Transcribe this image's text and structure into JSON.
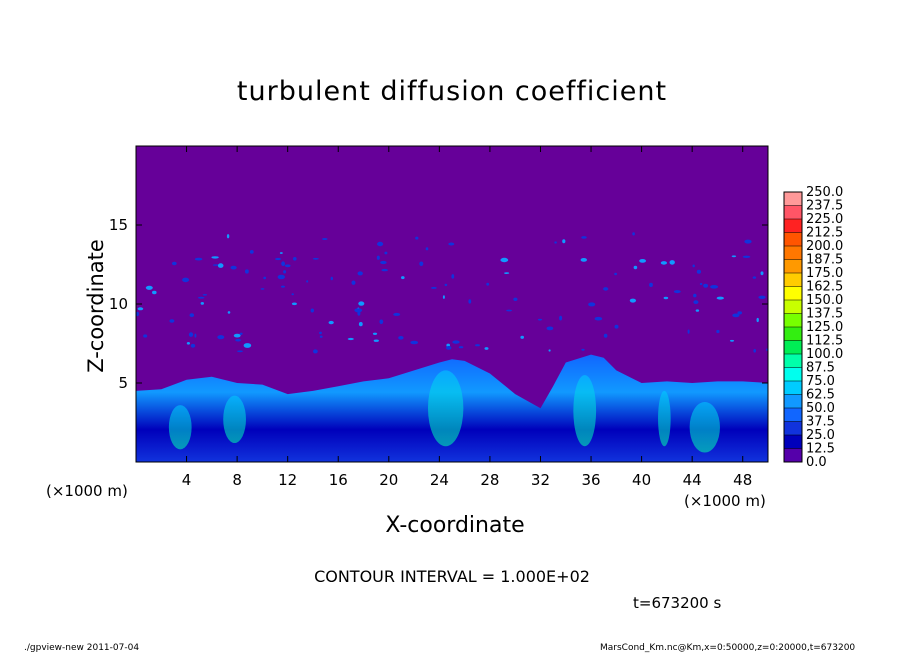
{
  "chart_data": {
    "type": "heatmap",
    "title": "turbulent diffusion coefficient",
    "xlabel": "X-coordinate",
    "ylabel": "Z-coordinate",
    "x_unit": "(×1000 m)",
    "xlim": [
      0,
      50
    ],
    "ylim": [
      0,
      20
    ],
    "x_ticks": [
      4,
      8,
      12,
      16,
      20,
      24,
      28,
      32,
      36,
      40,
      44,
      48
    ],
    "y_ticks": [
      5,
      10,
      15
    ],
    "colorbar": {
      "levels": [
        "250.0",
        "237.5",
        "225.0",
        "212.5",
        "200.0",
        "187.5",
        "175.0",
        "162.5",
        "150.0",
        "137.5",
        "125.0",
        "112.5",
        "100.0",
        "87.5",
        "75.0",
        "62.5",
        "50.0",
        "37.5",
        "25.0",
        "12.5",
        "0.0"
      ],
      "colors": [
        "#ff9999",
        "#ff5566",
        "#ff2222",
        "#ff5500",
        "#ff7700",
        "#ff9900",
        "#ffcc00",
        "#ffff00",
        "#c8ff00",
        "#77ff00",
        "#33ee11",
        "#00ee55",
        "#00ffaa",
        "#00ffee",
        "#00ccff",
        "#1199ff",
        "#1166ff",
        "#1133dd",
        "#0000bb",
        "#5500aa"
      ],
      "background_color": "#660099"
    },
    "approx_field": {
      "description_of_values": "boundary layer top height (z, ×1000 m) along x; low-valued background above",
      "x": [
        0,
        2,
        4,
        6,
        8,
        10,
        12,
        14,
        16,
        18,
        20,
        22,
        24,
        25,
        26,
        28,
        30,
        32,
        33,
        34,
        36,
        37,
        38,
        40,
        42,
        44,
        46,
        48,
        50
      ],
      "top_z": [
        4.5,
        4.6,
        5.2,
        5.4,
        5.0,
        4.9,
        4.3,
        4.5,
        4.8,
        5.1,
        5.3,
        5.8,
        6.3,
        6.5,
        6.4,
        5.6,
        4.3,
        3.4,
        4.8,
        6.3,
        6.8,
        6.6,
        5.8,
        5.0,
        5.1,
        5.0,
        5.1,
        5.1,
        5.0
      ]
    },
    "contour_interval": "CONTOUR INTERVAL = 1.000E+02"
  },
  "annotations": {
    "time": "t=673200 s",
    "footer_left": "./gpview-new  2011-07-04",
    "footer_right": "MarsCond_Km.nc@Km,x=0:50000,z=0:20000,t=673200"
  }
}
